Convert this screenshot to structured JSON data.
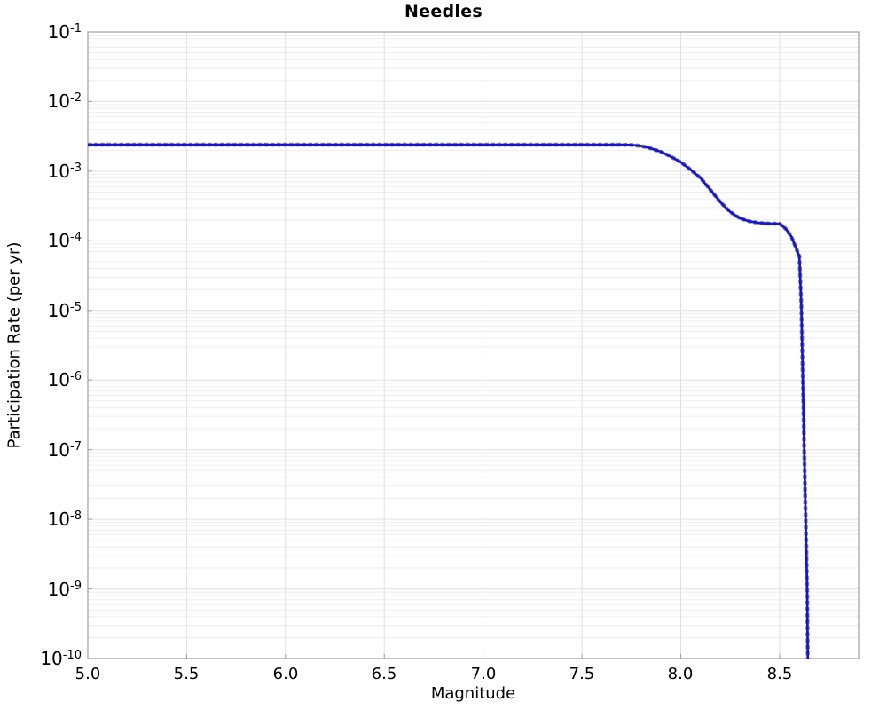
{
  "chart_data": {
    "type": "line",
    "title": "Needles",
    "xlabel": "Magnitude",
    "ylabel": "Participation Rate (per yr)",
    "xscale": "linear",
    "yscale": "log",
    "xlim": [
      5.0,
      8.9
    ],
    "ylim": [
      1e-10,
      0.1
    ],
    "grid": true,
    "legend_position": "none",
    "x_ticks": {
      "values": [
        5.0,
        5.5,
        6.0,
        6.5,
        7.0,
        7.5,
        8.0,
        8.5
      ],
      "labels": [
        "5.0",
        "5.5",
        "6.0",
        "6.5",
        "7.0",
        "7.5",
        "8.0",
        "8.5"
      ]
    },
    "y_ticks": {
      "base": "10",
      "exponents": [
        -1,
        -2,
        -3,
        -4,
        -5,
        -6,
        -7,
        -8,
        -9,
        -10
      ]
    },
    "colors": {
      "line": "#1414d2",
      "dash_overlay": "#8a8a8a",
      "grid_major": "#e0e0e0",
      "grid_minor": "#ededed",
      "spine": "#9e9e9e"
    },
    "series": [
      {
        "name": "participation-rate-curve",
        "line_styles": [
          {
            "color": "#8a8a8a",
            "dashed": true,
            "width": 4.6
          },
          {
            "color": "#1414d2",
            "dashed": false,
            "width": 2.7
          }
        ],
        "points": [
          [
            5.0,
            0.0024
          ],
          [
            5.25,
            0.0024
          ],
          [
            5.5,
            0.0024
          ],
          [
            5.75,
            0.0024
          ],
          [
            6.0,
            0.0024
          ],
          [
            6.25,
            0.0024
          ],
          [
            6.5,
            0.0024
          ],
          [
            6.75,
            0.0024
          ],
          [
            7.0,
            0.0024
          ],
          [
            7.25,
            0.0024
          ],
          [
            7.5,
            0.0024
          ],
          [
            7.6,
            0.0024
          ],
          [
            7.7,
            0.0024
          ],
          [
            7.75,
            0.00238
          ],
          [
            7.8,
            0.0023
          ],
          [
            7.85,
            0.00212
          ],
          [
            7.9,
            0.0019
          ],
          [
            7.95,
            0.00162
          ],
          [
            8.0,
            0.00135
          ],
          [
            8.05,
            0.00105
          ],
          [
            8.1,
            0.0008
          ],
          [
            8.15,
            0.00054
          ],
          [
            8.2,
            0.00036
          ],
          [
            8.25,
            0.00026
          ],
          [
            8.3,
            0.00021
          ],
          [
            8.35,
            0.00019
          ],
          [
            8.4,
            0.00018
          ],
          [
            8.45,
            0.000177
          ],
          [
            8.5,
            0.000176
          ],
          [
            8.53,
            0.00015
          ],
          [
            8.56,
            0.000115
          ],
          [
            8.6,
            6e-05
          ],
          [
            8.61,
            1.2e-05
          ],
          [
            8.615,
            2.5e-06
          ],
          [
            8.62,
            5e-07
          ],
          [
            8.625,
            1e-07
          ],
          [
            8.63,
            2e-08
          ],
          [
            8.635,
            4e-09
          ],
          [
            8.64,
            8e-10
          ],
          [
            8.643,
            1e-10
          ]
        ]
      }
    ]
  }
}
